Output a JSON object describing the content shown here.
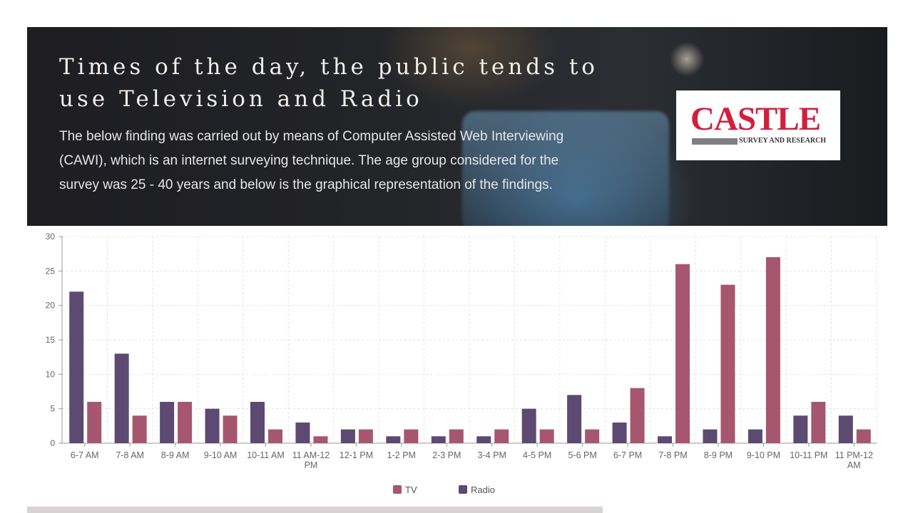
{
  "header": {
    "title": "Times of the day, the public tends to use Television and Radio",
    "description": "The below finding was carried out by means of Computer Assisted Web Interviewing (CAWI), which is an internet surveying technique. The age group considered for the survey was 25 - 40 years and below is the graphical representation of the findings.",
    "logo_word": "CASTLE",
    "logo_sub": "SURVEY AND RESEARCH"
  },
  "colors": {
    "tv": "#a6566e",
    "radio": "#5c4a72",
    "logo_red": "#d21f3c"
  },
  "chart_data": {
    "type": "bar",
    "title": "",
    "xlabel": "",
    "ylabel": "",
    "ylim": [
      0,
      30
    ],
    "yticks": [
      0,
      5,
      10,
      15,
      20,
      25,
      30
    ],
    "grid": true,
    "legend_position": "bottom",
    "categories": [
      "6-7 AM",
      "7-8 AM",
      "8-9 AM",
      "9-10 AM",
      "10-11 AM",
      "11 AM-12 PM",
      "12-1 PM",
      "1-2 PM",
      "2-3 PM",
      "3-4 PM",
      "4-5 PM",
      "5-6 PM",
      "6-7 PM",
      "7-8 PM",
      "8-9 PM",
      "9-10 PM",
      "10-11 PM",
      "11 PM-12 AM"
    ],
    "series": [
      {
        "name": "Radio",
        "color": "#5c4a72",
        "values": [
          22,
          13,
          6,
          5,
          6,
          3,
          2,
          1,
          1,
          1,
          5,
          7,
          3,
          1,
          2,
          2,
          4,
          4
        ]
      },
      {
        "name": "TV",
        "color": "#a6566e",
        "values": [
          6,
          4,
          6,
          4,
          2,
          1,
          2,
          2,
          2,
          2,
          2,
          2,
          8,
          26,
          23,
          27,
          6,
          2
        ]
      }
    ],
    "legend_order": [
      "TV",
      "Radio"
    ]
  }
}
